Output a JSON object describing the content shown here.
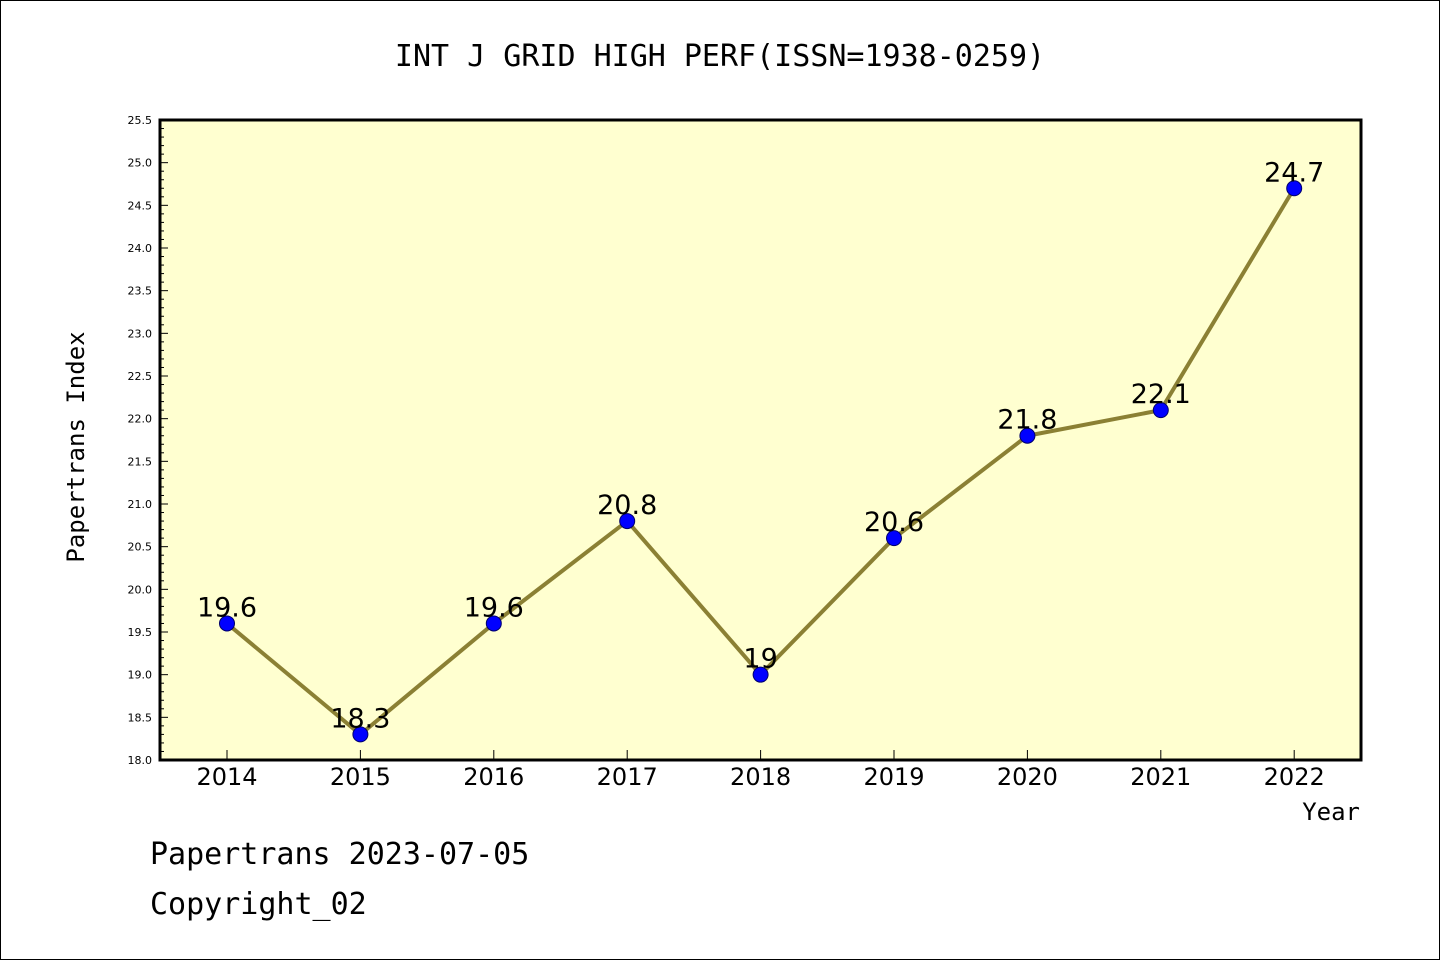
{
  "chart_data": {
    "type": "line",
    "title": "INT J GRID HIGH PERF(ISSN=1938-0259)",
    "xlabel": "Year",
    "ylabel": "Papertrans Index",
    "categories": [
      "2014",
      "2015",
      "2016",
      "2017",
      "2018",
      "2019",
      "2020",
      "2021",
      "2022"
    ],
    "series": [
      {
        "values": [
          19.6,
          18.3,
          19.6,
          20.8,
          19,
          20.6,
          21.8,
          22.1,
          24.7
        ],
        "labels": [
          "19.6",
          "18.3",
          "19.6",
          "20.8",
          "19",
          "20.6",
          "21.8",
          "22.1",
          "24.7"
        ],
        "line_color": "#8b8034",
        "marker_color": "#0000ff"
      }
    ],
    "ylim": [
      18.0,
      25.5
    ],
    "yticks": [
      "18.0",
      "18.5",
      "19.0",
      "19.5",
      "20.0",
      "20.5",
      "21.0",
      "21.5",
      "22.0",
      "22.5",
      "23.0",
      "23.5",
      "24.0",
      "24.5",
      "25.0",
      "25.5"
    ],
    "grid": false,
    "plot_background": "#ffffd0"
  },
  "footer": {
    "line1": "Papertrans 2023-07-05",
    "line2": "Copyright_02"
  }
}
